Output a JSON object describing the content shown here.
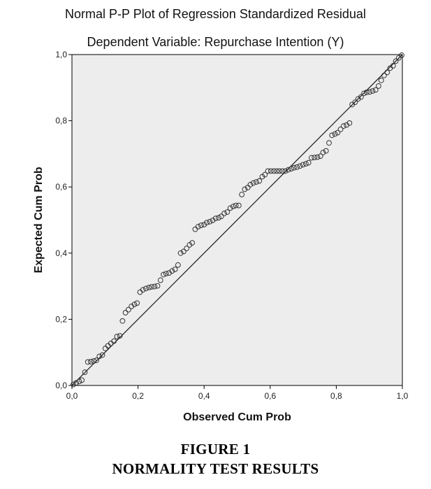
{
  "chart_data": {
    "type": "scatter",
    "title": "Normal P-P Plot of Regression Standardized Residual",
    "subtitle": "Dependent Variable: Repurchase Intention (Y)",
    "xlabel": "Observed Cum Prob",
    "ylabel": "Expected Cum Prob",
    "xlim": [
      0,
      1
    ],
    "ylim": [
      0,
      1
    ],
    "x_ticks": [
      "0,0",
      "0,2",
      "0,4",
      "0,6",
      "0,8",
      "1,0"
    ],
    "y_ticks": [
      "0,0",
      "0,2",
      "0,4",
      "0,6",
      "0,8",
      "1,0"
    ],
    "reference_line": [
      [
        0,
        0
      ],
      [
        1,
        1
      ]
    ],
    "grid": false,
    "colors": {
      "plot_background": "#ededed",
      "marker_stroke": "#333333",
      "line": "#222222"
    },
    "points": {
      "x": [
        0.004,
        0.013,
        0.022,
        0.03,
        0.039,
        0.048,
        0.057,
        0.066,
        0.074,
        0.083,
        0.092,
        0.101,
        0.109,
        0.118,
        0.127,
        0.136,
        0.145,
        0.153,
        0.162,
        0.171,
        0.18,
        0.189,
        0.197,
        0.206,
        0.215,
        0.224,
        0.233,
        0.241,
        0.25,
        0.259,
        0.268,
        0.277,
        0.285,
        0.294,
        0.303,
        0.312,
        0.321,
        0.329,
        0.338,
        0.347,
        0.356,
        0.364,
        0.373,
        0.382,
        0.391,
        0.4,
        0.408,
        0.417,
        0.426,
        0.435,
        0.444,
        0.452,
        0.461,
        0.47,
        0.479,
        0.488,
        0.496,
        0.505,
        0.514,
        0.523,
        0.532,
        0.54,
        0.549,
        0.558,
        0.567,
        0.576,
        0.584,
        0.593,
        0.602,
        0.611,
        0.62,
        0.628,
        0.637,
        0.646,
        0.655,
        0.664,
        0.672,
        0.681,
        0.69,
        0.699,
        0.708,
        0.716,
        0.725,
        0.734,
        0.743,
        0.752,
        0.76,
        0.769,
        0.778,
        0.787,
        0.796,
        0.804,
        0.813,
        0.822,
        0.831,
        0.84,
        0.848,
        0.857,
        0.866,
        0.875,
        0.884,
        0.892,
        0.901,
        0.91,
        0.919,
        0.928,
        0.936,
        0.945,
        0.954,
        0.963,
        0.972,
        0.98,
        0.989,
        0.998
      ],
      "y": [
        0.003,
        0.008,
        0.012,
        0.016,
        0.04,
        0.071,
        0.072,
        0.074,
        0.076,
        0.088,
        0.092,
        0.112,
        0.12,
        0.127,
        0.134,
        0.148,
        0.15,
        0.195,
        0.22,
        0.229,
        0.239,
        0.245,
        0.249,
        0.282,
        0.289,
        0.293,
        0.296,
        0.298,
        0.299,
        0.301,
        0.318,
        0.335,
        0.338,
        0.34,
        0.346,
        0.351,
        0.364,
        0.4,
        0.405,
        0.414,
        0.425,
        0.431,
        0.472,
        0.48,
        0.484,
        0.486,
        0.492,
        0.495,
        0.499,
        0.505,
        0.507,
        0.511,
        0.52,
        0.524,
        0.536,
        0.541,
        0.544,
        0.544,
        0.577,
        0.593,
        0.598,
        0.607,
        0.612,
        0.615,
        0.618,
        0.631,
        0.637,
        0.648,
        0.648,
        0.648,
        0.648,
        0.648,
        0.648,
        0.648,
        0.652,
        0.655,
        0.658,
        0.66,
        0.663,
        0.667,
        0.67,
        0.673,
        0.688,
        0.689,
        0.69,
        0.693,
        0.704,
        0.709,
        0.733,
        0.756,
        0.76,
        0.764,
        0.774,
        0.784,
        0.787,
        0.793,
        0.849,
        0.856,
        0.866,
        0.872,
        0.883,
        0.886,
        0.887,
        0.89,
        0.893,
        0.905,
        0.922,
        0.937,
        0.946,
        0.959,
        0.966,
        0.98,
        0.99,
        0.998
      ]
    }
  },
  "caption": {
    "line1": "FIGURE 1",
    "line2": "NORMALITY TEST RESULTS"
  }
}
